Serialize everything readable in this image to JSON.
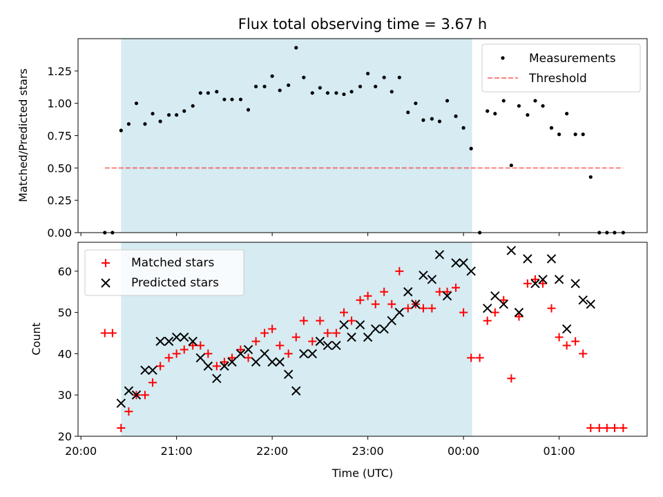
{
  "chart_data": [
    {
      "type": "scatter",
      "title": "Flux total observing time = 3.67 h",
      "xlabel": "",
      "ylabel": "Matched/Predicted stars",
      "x_unit": "hours, time of day (UTC); 24+ = after midnight",
      "xlim": [
        19.97,
        25.92
      ],
      "ylim": [
        0.0,
        1.5
      ],
      "yticks": [
        0.0,
        0.25,
        0.5,
        0.75,
        1.0,
        1.25
      ],
      "ytick_labels": [
        "0.00",
        "0.25",
        "0.50",
        "0.75",
        "1.00",
        "1.25"
      ],
      "shaded_interval": {
        "from": 20.42,
        "to": 24.09,
        "color": "#add8e6"
      },
      "legend": {
        "position": "top-right",
        "entries": [
          "Measurements",
          "Threshold"
        ]
      },
      "series": [
        {
          "name": "Measurements",
          "marker": "dot",
          "color": "#000000",
          "points": [
            [
              20.25,
              0.0
            ],
            [
              20.33,
              0.0
            ],
            [
              20.42,
              0.79
            ],
            [
              20.5,
              0.84
            ],
            [
              20.58,
              1.0
            ],
            [
              20.67,
              0.84
            ],
            [
              20.75,
              0.92
            ],
            [
              20.83,
              0.86
            ],
            [
              20.92,
              0.91
            ],
            [
              21.0,
              0.91
            ],
            [
              21.08,
              0.94
            ],
            [
              21.17,
              0.98
            ],
            [
              21.25,
              1.08
            ],
            [
              21.33,
              1.08
            ],
            [
              21.42,
              1.09
            ],
            [
              21.5,
              1.03
            ],
            [
              21.58,
              1.03
            ],
            [
              21.67,
              1.03
            ],
            [
              21.75,
              0.95
            ],
            [
              21.83,
              1.13
            ],
            [
              21.92,
              1.13
            ],
            [
              22.0,
              1.21
            ],
            [
              22.08,
              1.1
            ],
            [
              22.17,
              1.14
            ],
            [
              22.25,
              1.43
            ],
            [
              22.33,
              1.2
            ],
            [
              22.42,
              1.08
            ],
            [
              22.5,
              1.12
            ],
            [
              22.58,
              1.08
            ],
            [
              22.67,
              1.08
            ],
            [
              22.75,
              1.07
            ],
            [
              22.83,
              1.09
            ],
            [
              22.92,
              1.13
            ],
            [
              23.0,
              1.23
            ],
            [
              23.08,
              1.13
            ],
            [
              23.17,
              1.2
            ],
            [
              23.25,
              1.09
            ],
            [
              23.33,
              1.2
            ],
            [
              23.42,
              0.93
            ],
            [
              23.5,
              1.0
            ],
            [
              23.58,
              0.87
            ],
            [
              23.67,
              0.88
            ],
            [
              23.75,
              0.86
            ],
            [
              23.83,
              1.02
            ],
            [
              23.92,
              0.9
            ],
            [
              24.0,
              0.81
            ],
            [
              24.08,
              0.65
            ],
            [
              24.17,
              0.0
            ],
            [
              24.25,
              0.94
            ],
            [
              24.33,
              0.92
            ],
            [
              24.42,
              1.02
            ],
            [
              24.5,
              0.52
            ],
            [
              24.58,
              0.98
            ],
            [
              24.67,
              0.91
            ],
            [
              24.75,
              1.02
            ],
            [
              24.83,
              0.98
            ],
            [
              24.92,
              0.81
            ],
            [
              25.0,
              0.76
            ],
            [
              25.08,
              0.92
            ],
            [
              25.17,
              0.76
            ],
            [
              25.25,
              0.76
            ],
            [
              25.33,
              0.43
            ],
            [
              25.42,
              0.0
            ],
            [
              25.5,
              0.0
            ],
            [
              25.58,
              0.0
            ],
            [
              25.67,
              0.0
            ]
          ]
        },
        {
          "name": "Threshold",
          "line_style": "dashed",
          "color": "#ff0000",
          "opacity": 0.5,
          "x": [
            20.25,
            25.67
          ],
          "values": [
            0.5,
            0.5
          ]
        }
      ]
    },
    {
      "type": "scatter",
      "title": "",
      "xlabel": "Time (UTC)",
      "ylabel": "Count",
      "x_unit": "hours, time of day (UTC); 24+ = after midnight",
      "xlim": [
        19.97,
        25.92
      ],
      "ylim": [
        20,
        67
      ],
      "yticks": [
        20,
        30,
        40,
        50,
        60
      ],
      "ytick_labels": [
        "20",
        "30",
        "40",
        "50",
        "60"
      ],
      "xticks": [
        20,
        21,
        22,
        23,
        24,
        25
      ],
      "xtick_labels": [
        "20:00",
        "21:00",
        "22:00",
        "23:00",
        "00:00",
        "01:00"
      ],
      "shaded_interval": {
        "from": 20.42,
        "to": 24.09,
        "color": "#add8e6"
      },
      "legend": {
        "position": "top-left",
        "entries": [
          "Matched stars",
          "Predicted stars"
        ]
      },
      "series": [
        {
          "name": "Matched stars",
          "marker": "plus",
          "color": "#ff0000",
          "points": [
            [
              20.25,
              45
            ],
            [
              20.33,
              45
            ],
            [
              20.42,
              22
            ],
            [
              20.5,
              26
            ],
            [
              20.58,
              30
            ],
            [
              20.67,
              30
            ],
            [
              20.75,
              33
            ],
            [
              20.83,
              37
            ],
            [
              20.92,
              39
            ],
            [
              21.0,
              40
            ],
            [
              21.08,
              41
            ],
            [
              21.17,
              42
            ],
            [
              21.25,
              42
            ],
            [
              21.33,
              40
            ],
            [
              21.42,
              37
            ],
            [
              21.5,
              38
            ],
            [
              21.58,
              39
            ],
            [
              21.67,
              41
            ],
            [
              21.75,
              39
            ],
            [
              21.83,
              43
            ],
            [
              21.92,
              45
            ],
            [
              22.0,
              46
            ],
            [
              22.08,
              42
            ],
            [
              22.17,
              40
            ],
            [
              22.25,
              44
            ],
            [
              22.33,
              48
            ],
            [
              22.42,
              43
            ],
            [
              22.5,
              48
            ],
            [
              22.58,
              45
            ],
            [
              22.67,
              45
            ],
            [
              22.75,
              50
            ],
            [
              22.83,
              48
            ],
            [
              22.92,
              53
            ],
            [
              23.0,
              54
            ],
            [
              23.08,
              52
            ],
            [
              23.17,
              55
            ],
            [
              23.25,
              52
            ],
            [
              23.33,
              60
            ],
            [
              23.42,
              51
            ],
            [
              23.5,
              52
            ],
            [
              23.58,
              51
            ],
            [
              23.67,
              51
            ],
            [
              23.75,
              55
            ],
            [
              23.83,
              55
            ],
            [
              23.92,
              56
            ],
            [
              24.0,
              50
            ],
            [
              24.08,
              39
            ],
            [
              24.17,
              39
            ],
            [
              24.25,
              48
            ],
            [
              24.33,
              50
            ],
            [
              24.42,
              53
            ],
            [
              24.5,
              34
            ],
            [
              24.58,
              49
            ],
            [
              24.67,
              57
            ],
            [
              24.75,
              58
            ],
            [
              24.83,
              57
            ],
            [
              24.92,
              51
            ],
            [
              25.0,
              44
            ],
            [
              25.08,
              42
            ],
            [
              25.17,
              43
            ],
            [
              25.25,
              40
            ],
            [
              25.33,
              22
            ],
            [
              25.42,
              22
            ],
            [
              25.5,
              22
            ],
            [
              25.58,
              22
            ],
            [
              25.67,
              22
            ]
          ]
        },
        {
          "name": "Predicted stars",
          "marker": "x",
          "color": "#000000",
          "points": [
            [
              20.42,
              28
            ],
            [
              20.5,
              31
            ],
            [
              20.58,
              30
            ],
            [
              20.67,
              36
            ],
            [
              20.75,
              36
            ],
            [
              20.83,
              43
            ],
            [
              20.92,
              43
            ],
            [
              21.0,
              44
            ],
            [
              21.08,
              44
            ],
            [
              21.17,
              43
            ],
            [
              21.25,
              39
            ],
            [
              21.33,
              37
            ],
            [
              21.42,
              34
            ],
            [
              21.5,
              37
            ],
            [
              21.58,
              38
            ],
            [
              21.67,
              40
            ],
            [
              21.75,
              41
            ],
            [
              21.83,
              38
            ],
            [
              21.92,
              40
            ],
            [
              22.0,
              38
            ],
            [
              22.08,
              38
            ],
            [
              22.17,
              35
            ],
            [
              22.25,
              31
            ],
            [
              22.33,
              40
            ],
            [
              22.42,
              40
            ],
            [
              22.5,
              43
            ],
            [
              22.58,
              42
            ],
            [
              22.67,
              42
            ],
            [
              22.75,
              47
            ],
            [
              22.83,
              44
            ],
            [
              22.92,
              47
            ],
            [
              23.0,
              44
            ],
            [
              23.08,
              46
            ],
            [
              23.17,
              46
            ],
            [
              23.25,
              48
            ],
            [
              23.33,
              50
            ],
            [
              23.42,
              55
            ],
            [
              23.5,
              52
            ],
            [
              23.58,
              59
            ],
            [
              23.67,
              58
            ],
            [
              23.75,
              64
            ],
            [
              23.83,
              54
            ],
            [
              23.92,
              62
            ],
            [
              24.0,
              62
            ],
            [
              24.08,
              60
            ],
            [
              24.25,
              51
            ],
            [
              24.33,
              54
            ],
            [
              24.42,
              52
            ],
            [
              24.5,
              65
            ],
            [
              24.58,
              50
            ],
            [
              24.67,
              63
            ],
            [
              24.75,
              57
            ],
            [
              24.83,
              58
            ],
            [
              24.92,
              63
            ],
            [
              25.0,
              58
            ],
            [
              25.08,
              46
            ],
            [
              25.17,
              57
            ],
            [
              25.25,
              53
            ],
            [
              25.33,
              52
            ]
          ]
        }
      ]
    }
  ]
}
